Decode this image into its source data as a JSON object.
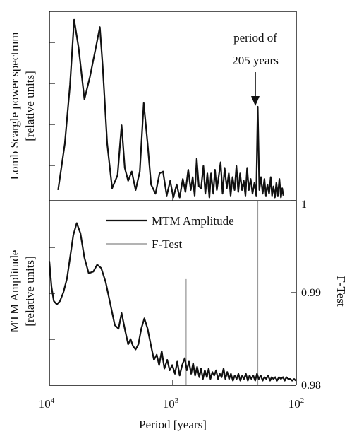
{
  "colors": {
    "ink": "#111111",
    "ftest": "#9a9a9a"
  },
  "chart_data": [
    {
      "type": "line",
      "panel": "top",
      "ylabel": [
        "Lomb Scargle power spectrum",
        "[relative units]"
      ],
      "x_scale": "log-reversed",
      "xlim": [
        10000,
        100
      ],
      "annotation": {
        "text_line1": "period of",
        "text_line2": "205 years",
        "x": 205
      },
      "series": [
        {
          "points": [
            [
              8500,
              0.05
            ],
            [
              7500,
              0.3
            ],
            [
              6800,
              0.62
            ],
            [
              6300,
              0.97
            ],
            [
              5800,
              0.82
            ],
            [
              5200,
              0.54
            ],
            [
              4700,
              0.66
            ],
            [
              4200,
              0.82
            ],
            [
              3900,
              0.93
            ],
            [
              3700,
              0.72
            ],
            [
              3400,
              0.3
            ],
            [
              3100,
              0.06
            ],
            [
              2800,
              0.13
            ],
            [
              2600,
              0.4
            ],
            [
              2450,
              0.17
            ],
            [
              2300,
              0.1
            ],
            [
              2150,
              0.15
            ],
            [
              2000,
              0.05
            ],
            [
              1850,
              0.15
            ],
            [
              1720,
              0.52
            ],
            [
              1600,
              0.3
            ],
            [
              1500,
              0.08
            ],
            [
              1380,
              0.03
            ],
            [
              1280,
              0.14
            ],
            [
              1200,
              0.15
            ],
            [
              1120,
              0.02
            ],
            [
              1050,
              0.1
            ],
            [
              990,
              0.01
            ],
            [
              930,
              0.08
            ],
            [
              880,
              0.01
            ],
            [
              830,
              0.11
            ],
            [
              790,
              0.04
            ],
            [
              750,
              0.16
            ],
            [
              715,
              0.05
            ],
            [
              690,
              0.12
            ],
            [
              665,
              0.02
            ],
            [
              640,
              0.22
            ],
            [
              615,
              0.07
            ],
            [
              590,
              0.06
            ],
            [
              565,
              0.18
            ],
            [
              545,
              0.03
            ],
            [
              525,
              0.14
            ],
            [
              505,
              0.01
            ],
            [
              490,
              0.14
            ],
            [
              470,
              0.03
            ],
            [
              455,
              0.16
            ],
            [
              440,
              0.05
            ],
            [
              425,
              0.12
            ],
            [
              410,
              0.2
            ],
            [
              395,
              0.03
            ],
            [
              380,
              0.17
            ],
            [
              365,
              0.06
            ],
            [
              352,
              0.14
            ],
            [
              340,
              0.02
            ],
            [
              328,
              0.12
            ],
            [
              316,
              0.05
            ],
            [
              305,
              0.18
            ],
            [
              295,
              0.04
            ],
            [
              285,
              0.14
            ],
            [
              275,
              0.05
            ],
            [
              266,
              0.1
            ],
            [
              258,
              0.02
            ],
            [
              250,
              0.17
            ],
            [
              242,
              0.05
            ],
            [
              234,
              0.11
            ],
            [
              226,
              0.03
            ],
            [
              218,
              0.09
            ],
            [
              211,
              0.02
            ],
            [
              205,
              0.5
            ],
            [
              199,
              0.05
            ],
            [
              193,
              0.12
            ],
            [
              187,
              0.03
            ],
            [
              181,
              0.11
            ],
            [
              176,
              0.02
            ],
            [
              171,
              0.08
            ],
            [
              166,
              0.03
            ],
            [
              161,
              0.12
            ],
            [
              157,
              0.02
            ],
            [
              153,
              0.07
            ],
            [
              149,
              0.01
            ],
            [
              145,
              0.09
            ],
            [
              141,
              0.02
            ],
            [
              137,
              0.11
            ],
            [
              133,
              0.01
            ],
            [
              130,
              0.06
            ],
            [
              127,
              0.02
            ]
          ]
        }
      ]
    },
    {
      "type": "line",
      "panel": "bottom",
      "xlabel": "Period [years]",
      "ylabel": [
        "MTM Amplitude",
        "[relative units]"
      ],
      "y2label": "F-Test",
      "x_scale": "log-reversed",
      "xlim": [
        10000,
        100
      ],
      "y2lim": [
        0.98,
        1
      ],
      "x_ticks": [
        {
          "base": "10",
          "exp": "4",
          "value": 10000
        },
        {
          "base": "10",
          "exp": "3",
          "value": 1000
        },
        {
          "base": "10",
          "exp": "2",
          "value": 100
        }
      ],
      "y2_ticks": [
        {
          "label": "1",
          "value": 1.0
        },
        {
          "label": "0.99",
          "value": 0.99
        },
        {
          "label": "0.98",
          "value": 0.98
        }
      ],
      "legend": [
        {
          "name": "MTM Amplitude",
          "style": "solid-dark"
        },
        {
          "name": "F-Test",
          "style": "solid-gray"
        }
      ],
      "series": [
        {
          "name": "MTM Amplitude",
          "points": [
            [
              10000,
              0.7
            ],
            [
              9600,
              0.55
            ],
            [
              9200,
              0.47
            ],
            [
              8700,
              0.45
            ],
            [
              8200,
              0.47
            ],
            [
              7700,
              0.52
            ],
            [
              7200,
              0.6
            ],
            [
              6800,
              0.72
            ],
            [
              6400,
              0.85
            ],
            [
              6000,
              0.92
            ],
            [
              5600,
              0.86
            ],
            [
              5200,
              0.72
            ],
            [
              4800,
              0.63
            ],
            [
              4400,
              0.64
            ],
            [
              4100,
              0.68
            ],
            [
              3800,
              0.66
            ],
            [
              3500,
              0.58
            ],
            [
              3200,
              0.45
            ],
            [
              2950,
              0.33
            ],
            [
              2750,
              0.31
            ],
            [
              2600,
              0.4
            ],
            [
              2450,
              0.31
            ],
            [
              2300,
              0.22
            ],
            [
              2200,
              0.25
            ],
            [
              2100,
              0.21
            ],
            [
              2000,
              0.19
            ],
            [
              1900,
              0.22
            ],
            [
              1800,
              0.31
            ],
            [
              1700,
              0.37
            ],
            [
              1600,
              0.31
            ],
            [
              1500,
              0.21
            ],
            [
              1420,
              0.13
            ],
            [
              1350,
              0.16
            ],
            [
              1290,
              0.1
            ],
            [
              1230,
              0.18
            ],
            [
              1170,
              0.08
            ],
            [
              1110,
              0.13
            ],
            [
              1060,
              0.07
            ],
            [
              1010,
              0.1
            ],
            [
              960,
              0.05
            ],
            [
              920,
              0.12
            ],
            [
              880,
              0.04
            ],
            [
              840,
              0.1
            ],
            [
              800,
              0.14
            ],
            [
              770,
              0.07
            ],
            [
              740,
              0.12
            ],
            [
              710,
              0.05
            ],
            [
              685,
              0.11
            ],
            [
              660,
              0.04
            ],
            [
              635,
              0.09
            ],
            [
              610,
              0.03
            ],
            [
              590,
              0.08
            ],
            [
              570,
              0.02
            ],
            [
              550,
              0.07
            ],
            [
              530,
              0.03
            ],
            [
              512,
              0.08
            ],
            [
              495,
              0.02
            ],
            [
              478,
              0.06
            ],
            [
              462,
              0.04
            ],
            [
              446,
              0.07
            ],
            [
              430,
              0.02
            ],
            [
              416,
              0.05
            ],
            [
              402,
              0.03
            ],
            [
              388,
              0.08
            ],
            [
              375,
              0.02
            ],
            [
              362,
              0.06
            ],
            [
              350,
              0.02
            ],
            [
              338,
              0.05
            ],
            [
              326,
              0.01
            ],
            [
              315,
              0.04
            ],
            [
              304,
              0.02
            ],
            [
              294,
              0.05
            ],
            [
              284,
              0.01
            ],
            [
              274,
              0.04
            ],
            [
              265,
              0.02
            ],
            [
              256,
              0.05
            ],
            [
              247,
              0.01
            ],
            [
              239,
              0.04
            ],
            [
              231,
              0.02
            ],
            [
              223,
              0.04
            ],
            [
              215,
              0.01
            ],
            [
              208,
              0.05
            ],
            [
              201,
              0.02
            ],
            [
              194,
              0.04
            ],
            [
              187,
              0.01
            ],
            [
              181,
              0.03
            ],
            [
              175,
              0.02
            ],
            [
              169,
              0.04
            ],
            [
              163,
              0.01
            ],
            [
              158,
              0.03
            ],
            [
              153,
              0.02
            ],
            [
              148,
              0.03
            ],
            [
              143,
              0.01
            ],
            [
              138,
              0.03
            ],
            [
              133,
              0.02
            ],
            [
              128,
              0.03
            ],
            [
              124,
              0.01
            ],
            [
              120,
              0.03
            ],
            [
              116,
              0.02
            ],
            [
              112,
              0.02
            ],
            [
              108,
              0.01
            ],
            [
              104,
              0.02
            ],
            [
              101,
              0.01
            ]
          ]
        },
        {
          "name": "F-Test",
          "spikes": [
            {
              "x": 205,
              "from": 0.98,
              "to": 1.0
            },
            {
              "x": 780,
              "from": 0.98,
              "to": 0.9915
            }
          ]
        }
      ]
    }
  ]
}
